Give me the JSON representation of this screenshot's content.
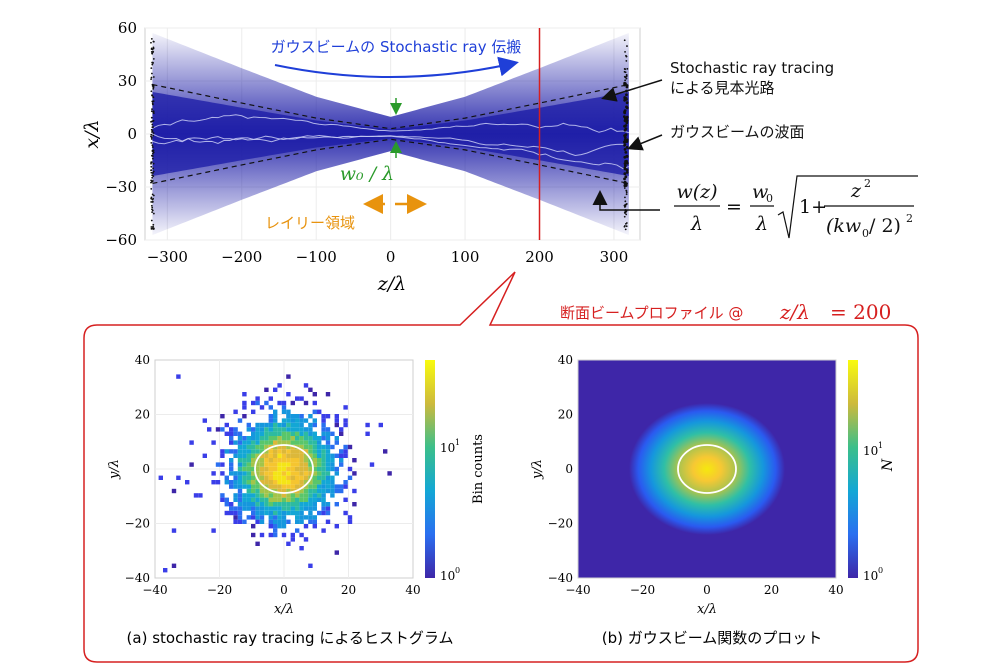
{
  "top_chart": {
    "xlabel": "z/λ",
    "ylabel": "x/λ",
    "xlim": [
      -330,
      335
    ],
    "ylim": [
      -60,
      60
    ],
    "xticks": [
      -300,
      -200,
      -100,
      0,
      100,
      200,
      300
    ],
    "xtick_labels": [
      "−300",
      "−200",
      "−100",
      "0",
      "100",
      "200",
      "300"
    ],
    "yticks": [
      -60,
      -30,
      0,
      30,
      60
    ],
    "ytick_labels": [
      "−60",
      "−30",
      "0",
      "30",
      "60"
    ],
    "propagation_label": "ガウスビームの Stochastic ray 伝搬",
    "waist_label": "w₀ / λ",
    "rayleigh_label": "レイリー領域",
    "sample_path_label_line1": "Stochastic ray tracing",
    "sample_path_label_line2": "による見本光路",
    "wavefront_label": "ガウスビームの波面",
    "section_z": 200,
    "colors": {
      "beam": "#1a1aa6",
      "propagation": "#1f3fd8",
      "waist": "#2a9a2a",
      "rayleigh": "#e8930e",
      "section": "#d62020"
    }
  },
  "chart_data": [
    {
      "type": "area",
      "title": "",
      "xlabel": "z/λ",
      "ylabel": "x/λ",
      "xlim": [
        -330,
        335
      ],
      "ylim": [
        -60,
        60
      ],
      "series": [
        {
          "name": "",
          "x": [
            -320,
            -200,
            -100,
            0,
            100,
            200,
            320
          ],
          "values": [
            28,
            17.5,
            9,
            3,
            9,
            17.5,
            28
          ]
        }
      ]
    },
    {
      "type": "heatmap",
      "title": "(a) stochastic ray tracing によるヒストグラム",
      "xlabel": "x/λ",
      "ylabel": "y/λ",
      "xlim": [
        -40,
        40
      ],
      "ylim": [
        -40,
        40
      ],
      "colorbar_label": "Bin counts",
      "colorbar_scale": "log",
      "colorbar_ticks": [
        "10",
        "10"
      ]
    },
    {
      "type": "heatmap",
      "title": "(b) ガウスビーム関数のプロット",
      "xlabel": "x/λ",
      "ylabel": "y/λ",
      "xlim": [
        -40,
        40
      ],
      "ylim": [
        -40,
        40
      ],
      "colorbar_label": "N",
      "colorbar_scale": "log",
      "colorbar_ticks": [
        "10",
        "10"
      ]
    }
  ],
  "formula": {
    "lhs_num": "w(z)",
    "lhs_den": "λ",
    "eq": "=",
    "w0": "w",
    "w0_sub": "0",
    "rhs_den": "λ",
    "one_plus": "1+",
    "z_sq": "z",
    "sq": "2",
    "den_open": "(kw",
    "den_sub": "0",
    "den_mid": " / 2)",
    "den_sq": "2"
  },
  "section": {
    "heading": "断面ビームプロファイル @",
    "heading_var": "z/λ",
    "heading_eq": "= 200"
  },
  "panel_a": {
    "caption": "(a) stochastic ray tracing によるヒストグラム",
    "colorbar_label": "Bin counts",
    "tick_top": "10",
    "tick_top_exp": "1",
    "tick_bottom": "10",
    "tick_bottom_exp": "0"
  },
  "panel_b": {
    "caption": "(b) ガウスビーム関数のプロット",
    "colorbar_label": "N",
    "tick_top": "10",
    "tick_top_exp": "1",
    "tick_bottom": "10",
    "tick_bottom_exp": "0"
  },
  "small_axes": {
    "ticks": [
      "−40",
      "−20",
      "0",
      "20",
      "40"
    ],
    "xlabel": "x/λ",
    "ylabel": "y/λ"
  }
}
